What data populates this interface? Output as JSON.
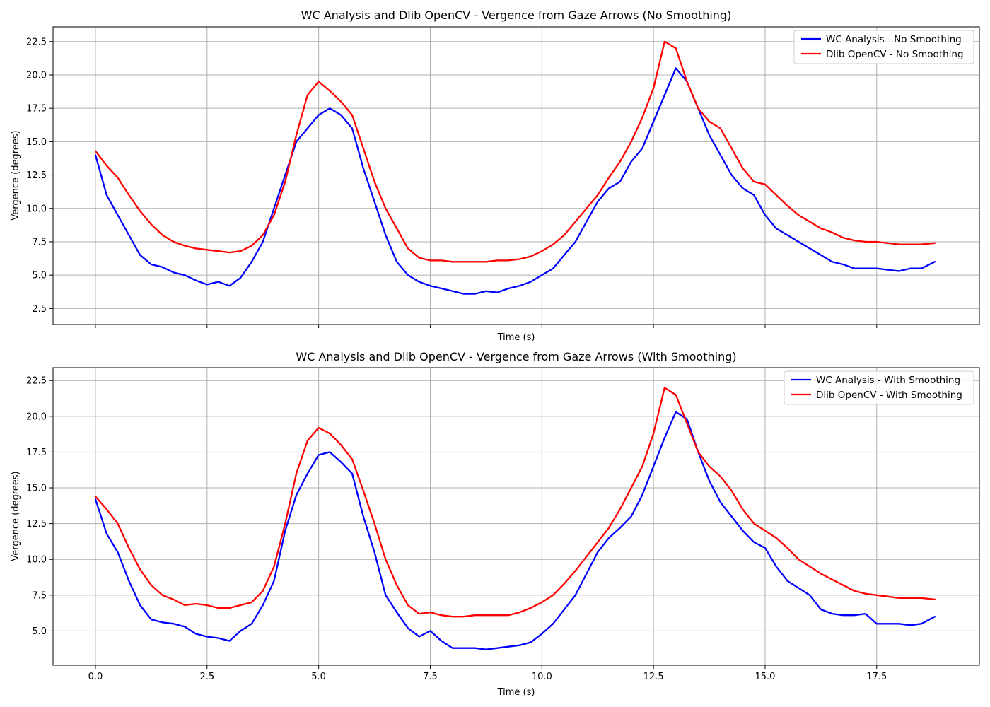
{
  "chart_data": [
    {
      "type": "line",
      "title": "WC Analysis and Dlib OpenCV - Vergence from Gaze Arrows (No Smoothing)",
      "xlabel": "Time (s)",
      "ylabel": "Vergence (degrees)",
      "xlim": [
        -0.95,
        19.8
      ],
      "ylim": [
        1.3,
        23.6
      ],
      "xticks": [
        0,
        2.5,
        5,
        7.5,
        10,
        12.5,
        15,
        17.5
      ],
      "xtick_labels_visible": false,
      "yticks": [
        2.5,
        5.0,
        7.5,
        10.0,
        12.5,
        15.0,
        17.5,
        20.0,
        22.5
      ],
      "grid": true,
      "legend_position": "top-right",
      "x": [
        0,
        0.25,
        0.5,
        0.75,
        1,
        1.25,
        1.5,
        1.75,
        2,
        2.25,
        2.5,
        2.75,
        3,
        3.25,
        3.5,
        3.75,
        4,
        4.25,
        4.5,
        4.75,
        5,
        5.25,
        5.5,
        5.75,
        6,
        6.25,
        6.5,
        6.75,
        7,
        7.25,
        7.5,
        7.75,
        8,
        8.25,
        8.5,
        8.75,
        9,
        9.25,
        9.5,
        9.75,
        10,
        10.25,
        10.5,
        10.75,
        11,
        11.25,
        11.5,
        11.75,
        12,
        12.25,
        12.5,
        12.75,
        13,
        13.25,
        13.5,
        13.75,
        14,
        14.25,
        14.5,
        14.75,
        15,
        15.25,
        15.5,
        15.75,
        16,
        16.25,
        16.5,
        16.75,
        17,
        17.25,
        17.5,
        17.75,
        18,
        18.25,
        18.5,
        18.8
      ],
      "series": [
        {
          "name": "WC Analysis - No Smoothing",
          "color": "#0000ff",
          "values": [
            14.0,
            11.0,
            9.5,
            8.0,
            6.5,
            5.8,
            5.6,
            5.2,
            5.0,
            4.6,
            4.3,
            4.5,
            4.2,
            4.8,
            6.0,
            7.5,
            10.0,
            12.5,
            15.0,
            16.0,
            17.0,
            17.5,
            17.0,
            16.0,
            13.0,
            10.5,
            8.0,
            6.0,
            5.0,
            4.5,
            4.2,
            4.0,
            3.8,
            3.6,
            3.6,
            3.8,
            3.7,
            4.0,
            4.2,
            4.5,
            5.0,
            5.5,
            6.5,
            7.5,
            9.0,
            10.5,
            11.5,
            12.0,
            13.5,
            14.5,
            16.5,
            18.5,
            20.5,
            19.5,
            17.5,
            15.5,
            14.0,
            12.5,
            11.5,
            11.0,
            9.5,
            8.5,
            8.0,
            7.5,
            7.0,
            6.5,
            6.0,
            5.8,
            5.5,
            5.5,
            5.5,
            5.4,
            5.3,
            5.5,
            5.5,
            6.0
          ]
        },
        {
          "name": "Dlib OpenCV - No Smoothing",
          "color": "#ff0000",
          "values": [
            14.3,
            13.2,
            12.3,
            11.0,
            9.8,
            8.8,
            8.0,
            7.5,
            7.2,
            7.0,
            6.9,
            6.8,
            6.7,
            6.8,
            7.2,
            8.0,
            9.5,
            12.0,
            15.5,
            18.5,
            19.5,
            18.8,
            18.0,
            17.0,
            14.5,
            12.0,
            10.0,
            8.5,
            7.0,
            6.3,
            6.1,
            6.1,
            6.0,
            6.0,
            6.0,
            6.0,
            6.1,
            6.1,
            6.2,
            6.4,
            6.8,
            7.3,
            8.0,
            9.0,
            10.0,
            11.0,
            12.3,
            13.5,
            15.0,
            16.8,
            19.0,
            22.5,
            22.0,
            19.5,
            17.5,
            16.5,
            16.0,
            14.5,
            13.0,
            12.0,
            11.8,
            11.0,
            10.2,
            9.5,
            9.0,
            8.5,
            8.2,
            7.8,
            7.6,
            7.5,
            7.5,
            7.4,
            7.3,
            7.3,
            7.3,
            7.4
          ]
        }
      ]
    },
    {
      "type": "line",
      "title": "WC Analysis and Dlib OpenCV - Vergence from Gaze Arrows (With Smoothing)",
      "xlabel": "Time (s)",
      "ylabel": "Vergence (degrees)",
      "xlim": [
        -0.95,
        19.8
      ],
      "ylim": [
        2.6,
        23.4
      ],
      "xticks": [
        0,
        2.5,
        5,
        7.5,
        10,
        12.5,
        15,
        17.5
      ],
      "xtick_labels": [
        "0.0",
        "2.5",
        "5.0",
        "7.5",
        "10.0",
        "12.5",
        "15.0",
        "17.5"
      ],
      "yticks": [
        5.0,
        7.5,
        10.0,
        12.5,
        15.0,
        17.5,
        20.0,
        22.5
      ],
      "grid": true,
      "legend_position": "top-right",
      "x": [
        0,
        0.25,
        0.5,
        0.75,
        1,
        1.25,
        1.5,
        1.75,
        2,
        2.25,
        2.5,
        2.75,
        3,
        3.25,
        3.5,
        3.75,
        4,
        4.25,
        4.5,
        4.75,
        5,
        5.25,
        5.5,
        5.75,
        6,
        6.25,
        6.5,
        6.75,
        7,
        7.25,
        7.5,
        7.75,
        8,
        8.25,
        8.5,
        8.75,
        9,
        9.25,
        9.5,
        9.75,
        10,
        10.25,
        10.5,
        10.75,
        11,
        11.25,
        11.5,
        11.75,
        12,
        12.25,
        12.5,
        12.75,
        13,
        13.25,
        13.5,
        13.75,
        14,
        14.25,
        14.5,
        14.75,
        15,
        15.25,
        15.5,
        15.75,
        16,
        16.25,
        16.5,
        16.75,
        17,
        17.25,
        17.5,
        17.75,
        18,
        18.25,
        18.5,
        18.8
      ],
      "series": [
        {
          "name": "WC Analysis - With Smoothing",
          "color": "#0000ff",
          "values": [
            14.2,
            11.8,
            10.5,
            8.5,
            6.8,
            5.8,
            5.6,
            5.5,
            5.3,
            4.8,
            4.6,
            4.5,
            4.3,
            5.0,
            5.5,
            6.8,
            8.5,
            12.0,
            14.5,
            16.0,
            17.3,
            17.5,
            16.8,
            16.0,
            13.0,
            10.5,
            7.5,
            6.3,
            5.2,
            4.6,
            5.0,
            4.3,
            3.8,
            3.8,
            3.8,
            3.7,
            3.8,
            3.9,
            4.0,
            4.2,
            4.8,
            5.5,
            6.5,
            7.5,
            9.0,
            10.5,
            11.5,
            12.2,
            13.0,
            14.5,
            16.5,
            18.5,
            20.3,
            19.8,
            17.5,
            15.5,
            14.0,
            13.0,
            12.0,
            11.2,
            10.8,
            9.5,
            8.5,
            8.0,
            7.5,
            6.5,
            6.2,
            6.1,
            6.1,
            6.2,
            5.5,
            5.5,
            5.5,
            5.4,
            5.5,
            6.0
          ]
        },
        {
          "name": "Dlib OpenCV - With Smoothing",
          "color": "#ff0000",
          "values": [
            14.4,
            13.5,
            12.5,
            10.8,
            9.3,
            8.2,
            7.5,
            7.2,
            6.8,
            6.9,
            6.8,
            6.6,
            6.6,
            6.8,
            7.0,
            7.8,
            9.5,
            12.5,
            16.0,
            18.3,
            19.2,
            18.8,
            18.0,
            17.0,
            14.8,
            12.5,
            10.0,
            8.2,
            6.8,
            6.2,
            6.3,
            6.1,
            6.0,
            6.0,
            6.1,
            6.1,
            6.1,
            6.1,
            6.3,
            6.6,
            7.0,
            7.5,
            8.3,
            9.2,
            10.2,
            11.2,
            12.2,
            13.5,
            15.0,
            16.5,
            18.8,
            22.0,
            21.5,
            19.5,
            17.5,
            16.5,
            15.8,
            14.8,
            13.5,
            12.5,
            12.0,
            11.5,
            10.8,
            10.0,
            9.5,
            9.0,
            8.6,
            8.2,
            7.8,
            7.6,
            7.5,
            7.4,
            7.3,
            7.3,
            7.3,
            7.2
          ]
        }
      ]
    }
  ]
}
